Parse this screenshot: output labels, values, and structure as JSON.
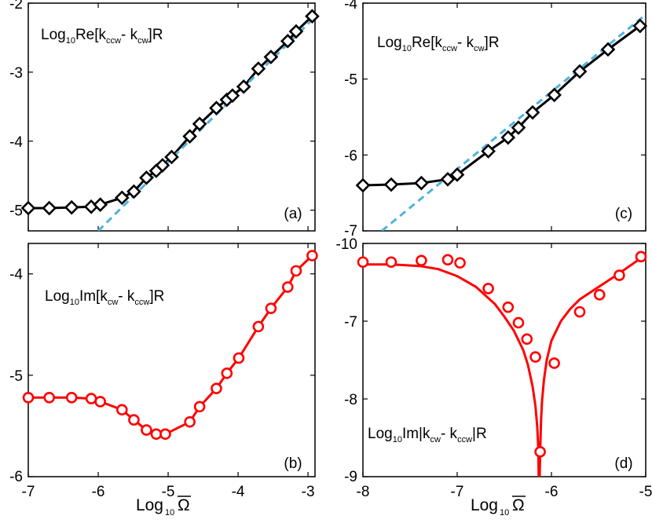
{
  "chart_data": [
    {
      "panel": "(a)",
      "type": "line",
      "annotation": {
        "base": "Log",
        "sub1": "10",
        "mid": "Re[k",
        "sub2": "ccw",
        "dash": "- k",
        "sub3": "cw",
        "tail": "]R"
      },
      "xlim": [
        -7,
        -2.9
      ],
      "ylim": [
        -5.3,
        -2
      ],
      "xticks": [],
      "yticks": [
        "-2",
        "-3",
        "-4",
        "-5"
      ],
      "series": [
        {
          "style": "markers-line",
          "marker": "diamond",
          "color": "#000000",
          "x": [
            -7.0,
            -6.7,
            -6.38,
            -6.1,
            -5.97,
            -5.66,
            -5.49,
            -5.31,
            -5.17,
            -5.08,
            -4.95,
            -4.69,
            -4.55,
            -4.31,
            -4.16,
            -4.08,
            -3.92,
            -3.71,
            -3.53,
            -3.29,
            -3.17,
            -2.94
          ],
          "y": [
            -4.97,
            -4.97,
            -4.96,
            -4.95,
            -4.92,
            -4.82,
            -4.73,
            -4.53,
            -4.43,
            -4.35,
            -4.23,
            -3.93,
            -3.75,
            -3.52,
            -3.4,
            -3.34,
            -3.21,
            -2.95,
            -2.78,
            -2.55,
            -2.41,
            -2.19
          ]
        },
        {
          "style": "dashed",
          "color": "#4db3e0",
          "x": [
            -6.0,
            -2.9
          ],
          "y": [
            -5.3,
            -2.2
          ]
        }
      ]
    },
    {
      "panel": "(b)",
      "type": "line",
      "annotation": {
        "base": "Log",
        "sub1": "10",
        "mid": "Im[k",
        "sub2": "cw",
        "dash": "- k",
        "sub3": "ccw",
        "tail": "]R"
      },
      "xlim": [
        -7,
        -2.9
      ],
      "ylim": [
        -6,
        -3.7
      ],
      "xlabel": "Log",
      "xlabel_sub": "10",
      "xlabel_symbol": "Ω",
      "xticks": [
        "-7",
        "-6",
        "-5",
        "-4",
        "-3"
      ],
      "yticks": [
        "-4",
        "-5",
        "-6"
      ],
      "series": [
        {
          "style": "markers-line",
          "marker": "circle",
          "color": "#ff0000",
          "x": [
            -7.0,
            -6.7,
            -6.38,
            -6.1,
            -5.97,
            -5.66,
            -5.49,
            -5.31,
            -5.17,
            -5.04,
            -4.69,
            -4.55,
            -4.31,
            -4.16,
            -3.99,
            -3.71,
            -3.53,
            -3.29,
            -3.17,
            -2.94
          ],
          "y": [
            -5.22,
            -5.22,
            -5.22,
            -5.23,
            -5.26,
            -5.34,
            -5.44,
            -5.54,
            -5.58,
            -5.58,
            -5.46,
            -5.31,
            -5.13,
            -4.98,
            -4.83,
            -4.52,
            -4.34,
            -4.13,
            -3.97,
            -3.82
          ]
        }
      ]
    },
    {
      "panel": "(c)",
      "type": "line",
      "annotation": {
        "base": "Log",
        "sub1": "10",
        "mid": "Re[k",
        "sub2": "ccw",
        "dash": "- k",
        "sub3": "cw",
        "tail": "]R"
      },
      "xlim": [
        -8,
        -5
      ],
      "ylim": [
        -7,
        -4
      ],
      "xticks": [],
      "yticks": [
        "-4",
        "-5",
        "-6",
        "-7"
      ],
      "series": [
        {
          "style": "markers-line",
          "marker": "diamond",
          "color": "#000000",
          "x": [
            -8.0,
            -7.7,
            -7.38,
            -7.1,
            -7.0,
            -6.67,
            -6.46,
            -6.35,
            -6.2,
            -5.97,
            -5.7,
            -5.4,
            -5.06
          ],
          "y": [
            -6.4,
            -6.39,
            -6.37,
            -6.32,
            -6.26,
            -5.95,
            -5.77,
            -5.64,
            -5.44,
            -5.21,
            -4.9,
            -4.61,
            -4.3
          ]
        },
        {
          "style": "dashed",
          "color": "#4db3e0",
          "x": [
            -7.8,
            -5.0
          ],
          "y": [
            -7.0,
            -4.15
          ]
        }
      ]
    },
    {
      "panel": "(d)",
      "type": "line",
      "annotation": {
        "base": "Log",
        "sub1": "10",
        "mid": "Im|k",
        "sub2": "cw",
        "dash": "- k",
        "sub3": "ccw",
        "tail": "|R"
      },
      "xlim": [
        -8,
        -5
      ],
      "ylim": [
        -9,
        -6
      ],
      "xlabel": "Log",
      "xlabel_sub": "10",
      "xlabel_symbol": "Ω",
      "xticks": [
        "-8",
        "-7",
        "-6",
        "-5"
      ],
      "yticks": [
        "-10",
        "-7",
        "-8",
        "-9"
      ],
      "series": [
        {
          "style": "markers",
          "marker": "circle",
          "color": "#ff0000",
          "x": [
            -8.0,
            -7.7,
            -7.38,
            -7.1,
            -6.97,
            -6.67,
            -6.46,
            -6.35,
            -6.26,
            -6.17,
            -6.12,
            -5.97,
            -5.7,
            -5.49,
            -5.28,
            -5.05
          ],
          "y": [
            -6.24,
            -6.24,
            -6.22,
            -6.21,
            -6.25,
            -6.58,
            -6.82,
            -7.02,
            -7.23,
            -7.46,
            -8.68,
            -7.54,
            -6.88,
            -6.66,
            -6.41,
            -6.17
          ]
        },
        {
          "style": "line",
          "color": "#ff0000",
          "x": [
            -8.0,
            -7.7,
            -7.4,
            -7.2,
            -7.0,
            -6.8,
            -6.6,
            -6.5,
            -6.4,
            -6.3,
            -6.25,
            -6.2,
            -6.17,
            -6.15,
            -6.14,
            -6.135,
            -6.125,
            -6.12,
            -6.11,
            -6.1,
            -6.08,
            -6.05,
            -6.0,
            -5.9,
            -5.8,
            -5.7,
            -5.5,
            -5.3,
            -5.1,
            -5.0
          ],
          "y": [
            -6.27,
            -6.27,
            -6.29,
            -6.33,
            -6.42,
            -6.56,
            -6.78,
            -6.94,
            -7.12,
            -7.37,
            -7.56,
            -7.84,
            -8.09,
            -8.37,
            -8.62,
            -9.0,
            -9.0,
            -8.7,
            -8.27,
            -8.03,
            -7.76,
            -7.5,
            -7.25,
            -7.0,
            -6.84,
            -6.72,
            -6.56,
            -6.4,
            -6.23,
            -6.13
          ]
        }
      ]
    }
  ]
}
